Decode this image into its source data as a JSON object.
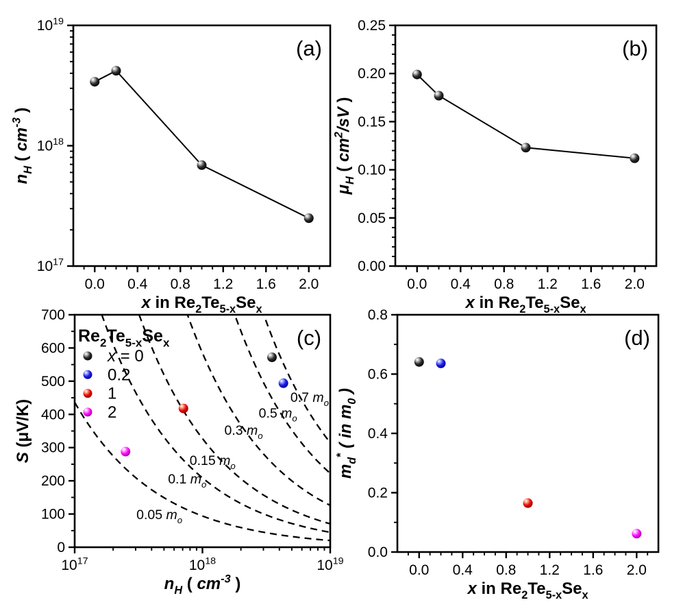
{
  "figure": {
    "background": "#ffffff",
    "series_colors": {
      "black": "#000000",
      "blue": "#1717e6",
      "red": "#ee1000",
      "magenta": "#ff00ff"
    },
    "ball_colors": {
      "black": {
        "light": "#c8c8c8",
        "base": "#2e2e2e",
        "dark": "#000000"
      },
      "blue": {
        "light": "#aab2ff",
        "base": "#1d1de8",
        "dark": "#00008c"
      },
      "red": {
        "light": "#ffb4aa",
        "base": "#ee1000",
        "dark": "#8a0000"
      },
      "magenta": {
        "light": "#ffc3ff",
        "base": "#ff10ff",
        "dark": "#9e009e"
      }
    }
  },
  "chart_data": [
    {
      "id": "a",
      "type": "line",
      "corner_label": "(a)",
      "x": {
        "scale": "linear",
        "min": -0.2,
        "max": 2.2,
        "majors": [
          0,
          0.4,
          0.8,
          1.2,
          1.6,
          2.0
        ],
        "tick_labels": [
          "0.0",
          "0.4",
          "0.8",
          "1.2",
          "1.6",
          "2.0"
        ],
        "minor_step": 0.1,
        "label_segs": [
          {
            "t": "x ",
            "i": 1
          },
          {
            "t": "in Re"
          },
          {
            "t": "2",
            "sub": 1
          },
          {
            "t": "Te"
          },
          {
            "t": "5-x",
            "sub": 1
          },
          {
            "t": "Se"
          },
          {
            "t": "x",
            "sub": 1
          }
        ]
      },
      "y": {
        "scale": "log",
        "min": 1e+17,
        "max": 1e+19,
        "majors": [
          1e+17,
          1e+18,
          1e+19
        ],
        "tick_label_segs": [
          [
            {
              "t": "10"
            },
            {
              "t": "17",
              "sup": 1
            }
          ],
          [
            {
              "t": "10"
            },
            {
              "t": "18",
              "sup": 1
            }
          ],
          [
            {
              "t": "10"
            },
            {
              "t": "19",
              "sup": 1
            }
          ]
        ],
        "label_segs": [
          {
            "t": "n",
            "i": 1
          },
          {
            "t": "H",
            "sub": 1,
            "i": 1
          },
          {
            "t": " ( "
          },
          {
            "t": "cm",
            "i": 1
          },
          {
            "t": "-3",
            "sup": 1,
            "i": 1
          },
          {
            "t": " )"
          }
        ]
      },
      "series": [
        {
          "sample": "x = 0..2",
          "color": "black",
          "line": true,
          "x": [
            0,
            0.2,
            1,
            2
          ],
          "y": [
            3.4e+18,
            4.2e+18,
            6.9e+17,
            2.5e+17
          ]
        }
      ]
    },
    {
      "id": "b",
      "type": "line",
      "corner_label": "(b)",
      "x": {
        "scale": "linear",
        "min": -0.2,
        "max": 2.2,
        "majors": [
          0,
          0.4,
          0.8,
          1.2,
          1.6,
          2.0
        ],
        "tick_labels": [
          "0.0",
          "0.4",
          "0.8",
          "1.2",
          "1.6",
          "2.0"
        ],
        "minor_step": 0.1,
        "label_segs": [
          {
            "t": "x ",
            "i": 1
          },
          {
            "t": "in Re"
          },
          {
            "t": "2",
            "sub": 1
          },
          {
            "t": "Te"
          },
          {
            "t": "5-x",
            "sub": 1
          },
          {
            "t": "Se"
          },
          {
            "t": "x",
            "sub": 1
          }
        ]
      },
      "y": {
        "scale": "linear",
        "min": 0,
        "max": 0.25,
        "majors": [
          0,
          0.05,
          0.1,
          0.15,
          0.2,
          0.25
        ],
        "tick_labels": [
          "0.00",
          "0.05",
          "0.10",
          "0.15",
          "0.20",
          "0.25"
        ],
        "minor_step": 0.01,
        "label_segs": [
          {
            "t": "μ",
            "i": 1
          },
          {
            "t": "H",
            "sub": 1,
            "i": 1
          },
          {
            "t": " ( "
          },
          {
            "t": "cm",
            "i": 1
          },
          {
            "t": "2",
            "sup": 1,
            "i": 1
          },
          {
            "t": "/sV",
            "i": 1
          },
          {
            "t": " )"
          }
        ]
      },
      "series": [
        {
          "sample": "x = 0..2",
          "color": "black",
          "line": true,
          "x": [
            0,
            0.2,
            1,
            2
          ],
          "y": [
            0.199,
            0.177,
            0.123,
            0.112
          ]
        }
      ]
    },
    {
      "id": "c",
      "type": "pisarenko",
      "corner_label": "(c)",
      "x": {
        "scale": "log",
        "min": 1e+17,
        "max": 1e+19,
        "majors": [
          1e+17,
          1e+18,
          1e+19
        ],
        "tick_label_segs": [
          [
            {
              "t": "10"
            },
            {
              "t": "17",
              "sup": 1
            }
          ],
          [
            {
              "t": "10"
            },
            {
              "t": "18",
              "sup": 1
            }
          ],
          [
            {
              "t": "10"
            },
            {
              "t": "19",
              "sup": 1
            }
          ]
        ],
        "label_segs": [
          {
            "t": "n",
            "i": 1
          },
          {
            "t": "H",
            "sub": 1,
            "i": 1
          },
          {
            "t": " ( "
          },
          {
            "t": "cm",
            "i": 1
          },
          {
            "t": "-3",
            "sup": 1,
            "i": 1
          },
          {
            "t": " )"
          }
        ]
      },
      "y": {
        "scale": "linear",
        "min": 0,
        "max": 700,
        "majors": [
          0,
          100,
          200,
          300,
          400,
          500,
          600,
          700
        ],
        "tick_labels": [
          "0",
          "100",
          "200",
          "300",
          "400",
          "500",
          "600",
          "700"
        ],
        "minor_step": 50,
        "label_segs": [
          {
            "t": "S ",
            "i": 1
          },
          {
            "t": "(μV/K)"
          }
        ]
      },
      "points": [
        {
          "sample": "x = 0",
          "color": "black",
          "n": 3.5e+18,
          "S": 572
        },
        {
          "sample": "0.2",
          "color": "blue",
          "n": 4.3e+18,
          "S": 494
        },
        {
          "sample": "1",
          "color": "red",
          "n": 7.1e+17,
          "S": 418
        },
        {
          "sample": "2",
          "color": "magenta",
          "n": 2.5e+17,
          "S": 288
        }
      ],
      "curves": {
        "formula": "S[uV/K] = coeff * mass * (n[cm^-3] / 1e19)^(-2/3)",
        "dash": "dashed",
        "items": [
          {
            "mass": 0.05,
            "coeff": 405,
            "anchor_n": 4.6e+17,
            "anchor_S": 99,
            "label_segs": [
              {
                "t": "0.05 "
              },
              {
                "t": "m",
                "i": 1
              },
              {
                "t": "o",
                "i": 1,
                "sub": 1
              }
            ]
          },
          {
            "mass": 0.1,
            "coeff": 450,
            "anchor_n": 7.6e+17,
            "anchor_S": 206,
            "label_segs": [
              {
                "t": "0.1 "
              },
              {
                "t": "m",
                "i": 1
              },
              {
                "t": "o",
                "i": 1,
                "sub": 1
              }
            ]
          },
          {
            "mass": 0.15,
            "coeff": 470,
            "anchor_n": 1.2e+18,
            "anchor_S": 262,
            "label_segs": [
              {
                "t": "0.15 "
              },
              {
                "t": "m",
                "i": 1
              },
              {
                "t": "o",
                "i": 1,
                "sub": 1
              }
            ]
          },
          {
            "mass": 0.3,
            "coeff": 420,
            "anchor_n": 2.1e+18,
            "anchor_S": 353,
            "label_segs": [
              {
                "t": "0.3 "
              },
              {
                "t": "m",
                "i": 1
              },
              {
                "t": "o",
                "i": 1,
                "sub": 1
              }
            ]
          },
          {
            "mass": 0.5,
            "coeff": 445,
            "anchor_n": 3.9e+18,
            "anchor_S": 405,
            "label_segs": [
              {
                "t": "0.5 "
              },
              {
                "t": "m",
                "i": 1
              },
              {
                "t": "o",
                "i": 1,
                "sub": 1
              }
            ]
          },
          {
            "mass": 0.7,
            "coeff": 450,
            "anchor_n": 6.9e+18,
            "anchor_S": 452,
            "label_segs": [
              {
                "t": "0.7 "
              },
              {
                "t": "m",
                "i": 1
              },
              {
                "t": "o",
                "i": 1,
                "sub": 1
              }
            ]
          }
        ]
      },
      "legend": {
        "title_segs": [
          {
            "t": "Re"
          },
          {
            "t": "2",
            "sub": 1
          },
          {
            "t": "Te"
          },
          {
            "t": "5-x",
            "sub": 1
          },
          {
            "t": "Se"
          },
          {
            "t": "x",
            "sub": 1
          }
        ],
        "items": [
          {
            "color": "black",
            "segs": [
              {
                "t": "x ",
                "i": 1
              },
              {
                "t": "= 0"
              }
            ]
          },
          {
            "color": "blue",
            "segs": [
              {
                "t": "0.2"
              }
            ]
          },
          {
            "color": "red",
            "segs": [
              {
                "t": "1"
              }
            ]
          },
          {
            "color": "magenta",
            "segs": [
              {
                "t": "2"
              }
            ]
          }
        ]
      }
    },
    {
      "id": "d",
      "type": "scatter",
      "corner_label": "(d)",
      "x": {
        "scale": "linear",
        "min": -0.2,
        "max": 2.2,
        "majors": [
          0,
          0.4,
          0.8,
          1.2,
          1.6,
          2.0
        ],
        "tick_labels": [
          "0.0",
          "0.4",
          "0.8",
          "1.2",
          "1.6",
          "2.0"
        ],
        "minor_step": 0.1,
        "label_segs": [
          {
            "t": "x ",
            "i": 1
          },
          {
            "t": "in Re"
          },
          {
            "t": "2",
            "sub": 1
          },
          {
            "t": "Te"
          },
          {
            "t": "5-x",
            "sub": 1
          },
          {
            "t": "Se"
          },
          {
            "t": "x",
            "sub": 1
          }
        ]
      },
      "y": {
        "scale": "linear",
        "min": 0,
        "max": 0.8,
        "majors": [
          0,
          0.2,
          0.4,
          0.6,
          0.8
        ],
        "tick_labels": [
          "0.0",
          "0.2",
          "0.4",
          "0.6",
          "0.8"
        ],
        "minor_step": 0.1,
        "label_segs": [
          {
            "t": "m",
            "i": 1
          },
          {
            "t": "d",
            "sub": 1,
            "i": 1
          },
          {
            "t": "*",
            "sup": 1
          },
          {
            "t": " ( in ",
            "i": 1
          },
          {
            "t": "m",
            "i": 1
          },
          {
            "t": "0",
            "sub": 1,
            "i": 1
          },
          {
            "t": " )",
            "i": 1
          }
        ]
      },
      "points": [
        {
          "sample": "x = 0",
          "color": "black",
          "x": 0,
          "y": 0.641
        },
        {
          "sample": "0.2",
          "color": "blue",
          "x": 0.2,
          "y": 0.636
        },
        {
          "sample": "1",
          "color": "red",
          "x": 1,
          "y": 0.165
        },
        {
          "sample": "2",
          "color": "magenta",
          "x": 2,
          "y": 0.062
        }
      ]
    }
  ]
}
